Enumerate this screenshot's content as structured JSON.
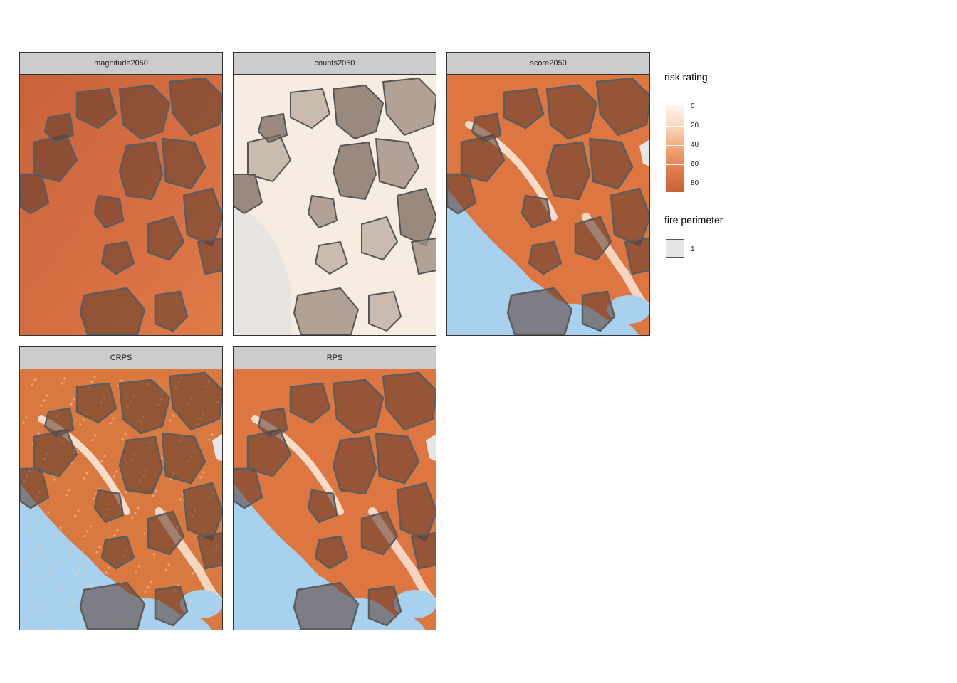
{
  "panels": [
    {
      "title": "magnitude2050",
      "variant": "magnitude"
    },
    {
      "title": "counts2050",
      "variant": "counts"
    },
    {
      "title": "score2050",
      "variant": "score"
    },
    {
      "title": "CRPS",
      "variant": "crps"
    },
    {
      "title": "RPS",
      "variant": "rps"
    }
  ],
  "legend": {
    "risk_title": "risk rating",
    "risk_ticks": [
      "0",
      "20",
      "40",
      "60",
      "80"
    ],
    "perimeter_title": "fire perimeter",
    "perimeter_key": "1"
  },
  "colors": {
    "water": "#a8d0ef",
    "risk_low": "#fdf5ee",
    "risk_high": "#c8603a",
    "perimeter_fill": "#555555",
    "perimeter_stroke": "#555555",
    "strip": "#cccccc"
  }
}
